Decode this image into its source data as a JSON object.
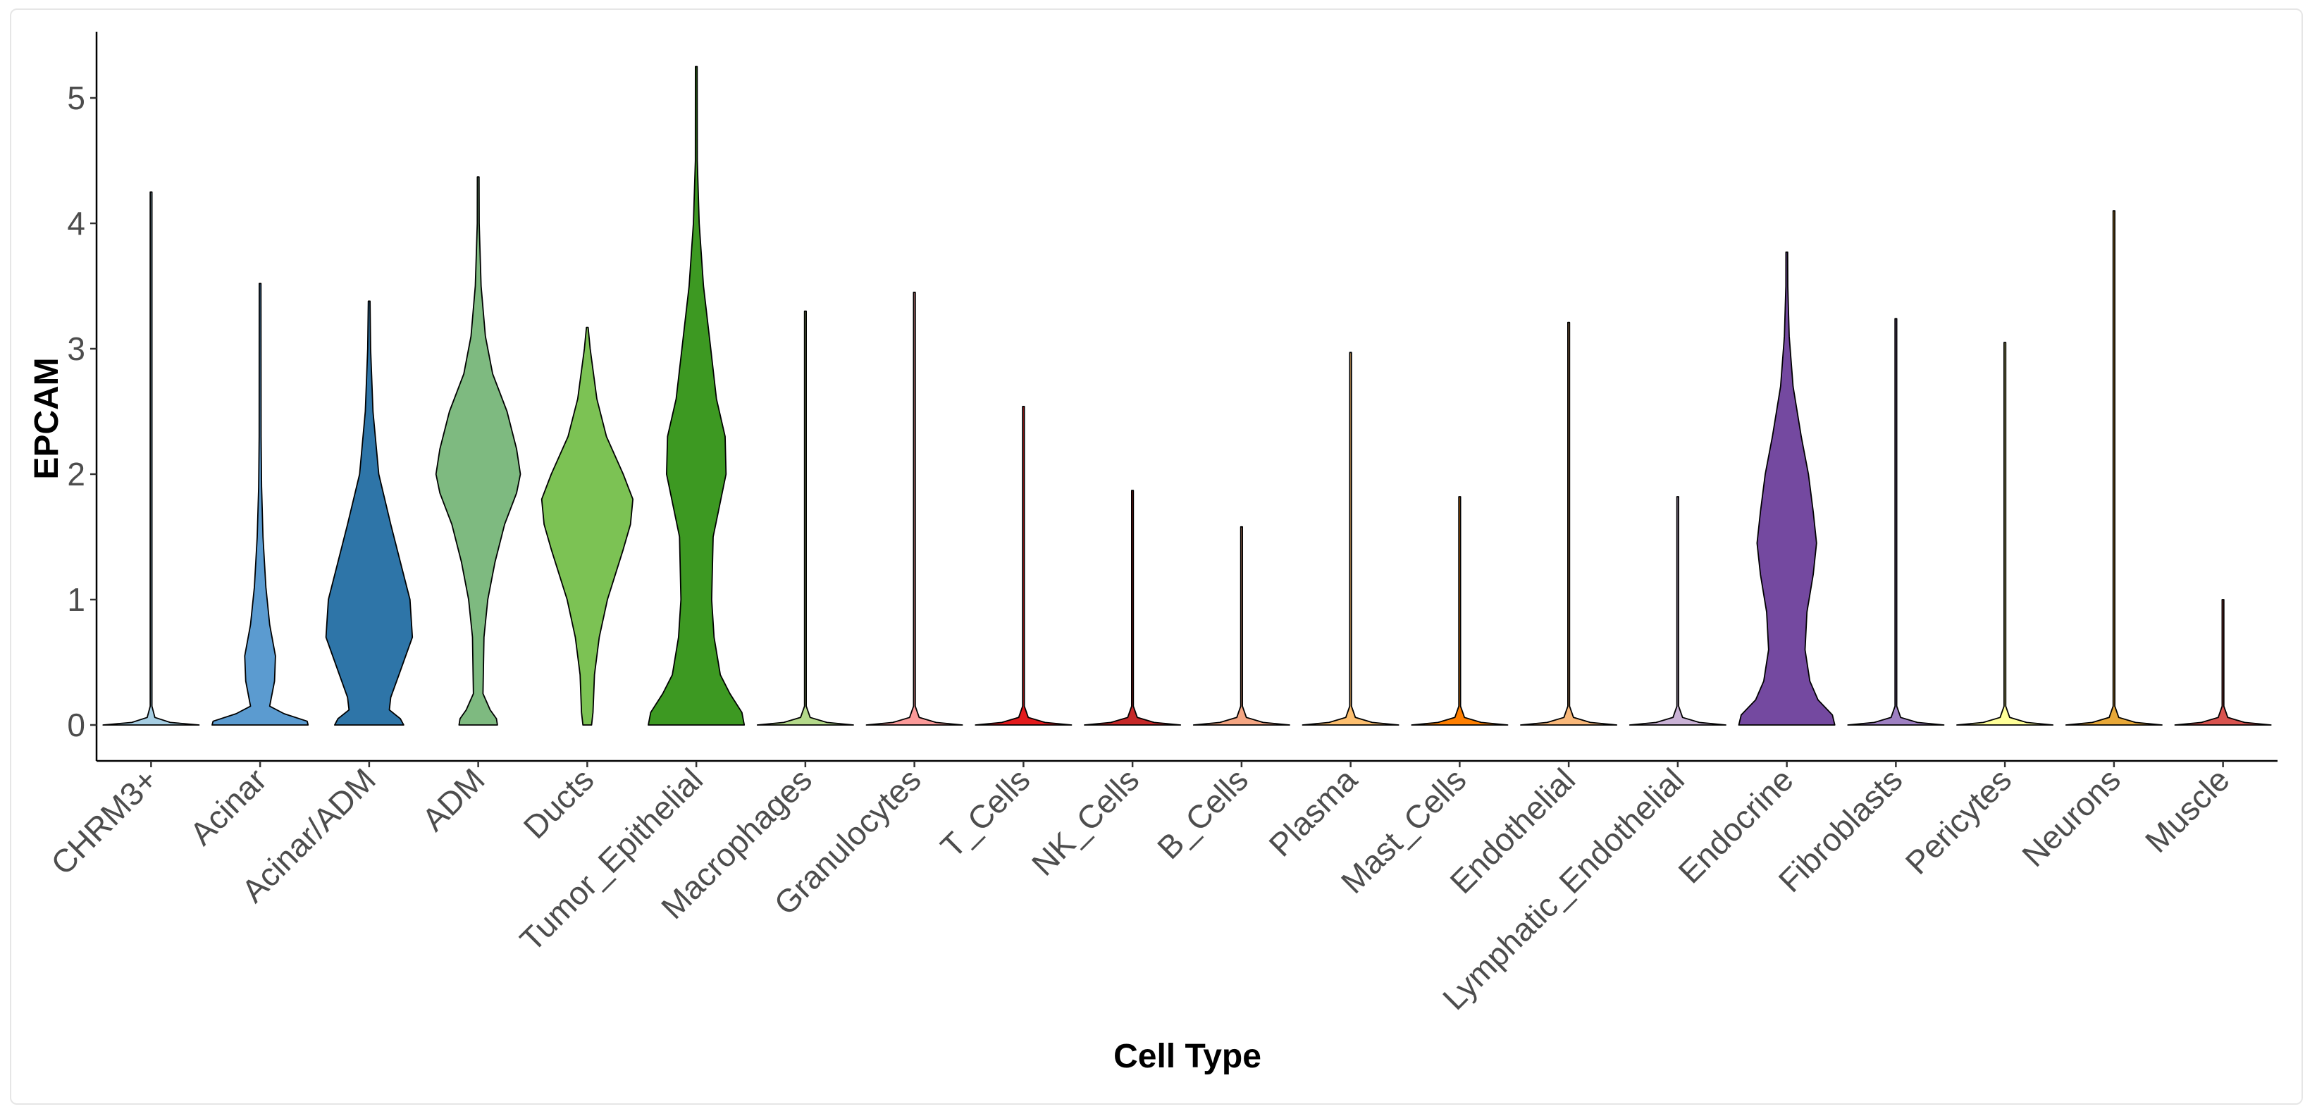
{
  "chart_data": {
    "type": "violin",
    "title": "",
    "xlabel": "Cell Type",
    "ylabel": "EPCAM",
    "ylim": [
      -0.3,
      5.5
    ],
    "yticks": [
      0,
      1,
      2,
      3,
      4,
      5
    ],
    "grid": false,
    "legend": "none",
    "categories": [
      "CHRM3+",
      "Acinar",
      "Acinar/ADM",
      "ADM",
      "Ducts",
      "Tumor_Epithelial",
      "Macrophages",
      "Granulocytes",
      "T_Cells",
      "NK_Cells",
      "B_Cells",
      "Plasma",
      "Mast_Cells",
      "Endothelial",
      "Lymphatic_Endothelial",
      "Endocrine",
      "Fibroblasts",
      "Pericytes",
      "Neurons",
      "Muscle"
    ],
    "series": [
      {
        "category": "CHRM3+",
        "color": "#a6cee3",
        "max": 4.25,
        "profile": [
          [
            0,
            1
          ],
          [
            0.02,
            0.4
          ],
          [
            0.06,
            0.08
          ],
          [
            0.15,
            0.01
          ],
          [
            4.25,
            0.01
          ]
        ]
      },
      {
        "category": "Acinar",
        "color": "#5b9bd0",
        "max": 3.52,
        "profile": [
          [
            0,
            1
          ],
          [
            0.03,
            0.98
          ],
          [
            0.09,
            0.5
          ],
          [
            0.15,
            0.2
          ],
          [
            0.35,
            0.3
          ],
          [
            0.55,
            0.32
          ],
          [
            0.8,
            0.2
          ],
          [
            1.1,
            0.12
          ],
          [
            1.5,
            0.06
          ],
          [
            1.9,
            0.03
          ],
          [
            2.3,
            0.02
          ],
          [
            3.52,
            0.01
          ]
        ]
      },
      {
        "category": "Acinar/ADM",
        "color": "#2e75a8",
        "max": 3.38,
        "profile": [
          [
            0,
            0.72
          ],
          [
            0.05,
            0.65
          ],
          [
            0.12,
            0.42
          ],
          [
            0.22,
            0.45
          ],
          [
            0.4,
            0.62
          ],
          [
            0.7,
            0.9
          ],
          [
            1.0,
            0.85
          ],
          [
            1.3,
            0.65
          ],
          [
            1.6,
            0.45
          ],
          [
            2.0,
            0.2
          ],
          [
            2.5,
            0.08
          ],
          [
            3.0,
            0.03
          ],
          [
            3.38,
            0.01
          ]
        ]
      },
      {
        "category": "ADM",
        "color": "#7eba80",
        "max": 4.37,
        "profile": [
          [
            0,
            0.4
          ],
          [
            0.05,
            0.38
          ],
          [
            0.12,
            0.25
          ],
          [
            0.25,
            0.1
          ],
          [
            0.7,
            0.12
          ],
          [
            1.0,
            0.2
          ],
          [
            1.3,
            0.35
          ],
          [
            1.6,
            0.55
          ],
          [
            1.85,
            0.8
          ],
          [
            2.0,
            0.88
          ],
          [
            2.2,
            0.8
          ],
          [
            2.5,
            0.6
          ],
          [
            2.8,
            0.3
          ],
          [
            3.1,
            0.15
          ],
          [
            3.5,
            0.06
          ],
          [
            4.0,
            0.02
          ],
          [
            4.37,
            0.01
          ]
        ]
      },
      {
        "category": "Ducts",
        "color": "#7cc254",
        "max": 3.17,
        "profile": [
          [
            0,
            0.09
          ],
          [
            0.1,
            0.12
          ],
          [
            0.4,
            0.15
          ],
          [
            0.7,
            0.25
          ],
          [
            1.0,
            0.42
          ],
          [
            1.4,
            0.75
          ],
          [
            1.6,
            0.9
          ],
          [
            1.8,
            0.95
          ],
          [
            2.0,
            0.75
          ],
          [
            2.3,
            0.4
          ],
          [
            2.6,
            0.2
          ],
          [
            3.0,
            0.06
          ],
          [
            3.17,
            0.01
          ]
        ]
      },
      {
        "category": "Tumor_Epithelial",
        "color": "#3d9922",
        "max": 5.25,
        "profile": [
          [
            0,
            1
          ],
          [
            0.1,
            0.95
          ],
          [
            0.25,
            0.7
          ],
          [
            0.4,
            0.5
          ],
          [
            0.7,
            0.37
          ],
          [
            1.0,
            0.32
          ],
          [
            1.5,
            0.35
          ],
          [
            2.0,
            0.62
          ],
          [
            2.3,
            0.6
          ],
          [
            2.6,
            0.42
          ],
          [
            3.0,
            0.3
          ],
          [
            3.5,
            0.15
          ],
          [
            4.0,
            0.06
          ],
          [
            4.5,
            0.02
          ],
          [
            5.25,
            0.01
          ]
        ]
      },
      {
        "category": "Macrophages",
        "color": "#b4d98a",
        "max": 3.3,
        "profile": [
          [
            0,
            1
          ],
          [
            0.02,
            0.45
          ],
          [
            0.06,
            0.1
          ],
          [
            0.15,
            0.01
          ],
          [
            3.3,
            0.01
          ]
        ]
      },
      {
        "category": "Granulocytes",
        "color": "#fb9a99",
        "max": 3.45,
        "profile": [
          [
            0,
            1
          ],
          [
            0.02,
            0.45
          ],
          [
            0.06,
            0.1
          ],
          [
            0.15,
            0.01
          ],
          [
            3.45,
            0.01
          ]
        ]
      },
      {
        "category": "T_Cells",
        "color": "#e31a1c",
        "max": 2.54,
        "profile": [
          [
            0,
            1
          ],
          [
            0.02,
            0.45
          ],
          [
            0.06,
            0.1
          ],
          [
            0.15,
            0.01
          ],
          [
            2.54,
            0.01
          ]
        ]
      },
      {
        "category": "NK_Cells",
        "color": "#c62828",
        "max": 1.87,
        "profile": [
          [
            0,
            1
          ],
          [
            0.02,
            0.45
          ],
          [
            0.06,
            0.1
          ],
          [
            0.15,
            0.01
          ],
          [
            1.87,
            0.01
          ]
        ]
      },
      {
        "category": "B_Cells",
        "color": "#f4a582",
        "max": 1.58,
        "profile": [
          [
            0,
            1
          ],
          [
            0.02,
            0.45
          ],
          [
            0.06,
            0.1
          ],
          [
            0.15,
            0.01
          ],
          [
            1.58,
            0.01
          ]
        ]
      },
      {
        "category": "Plasma",
        "color": "#fdbf6f",
        "max": 2.97,
        "profile": [
          [
            0,
            1
          ],
          [
            0.02,
            0.45
          ],
          [
            0.06,
            0.1
          ],
          [
            0.15,
            0.01
          ],
          [
            2.97,
            0.01
          ]
        ]
      },
      {
        "category": "Mast_Cells",
        "color": "#ff7f00",
        "max": 1.82,
        "profile": [
          [
            0,
            1
          ],
          [
            0.02,
            0.45
          ],
          [
            0.06,
            0.1
          ],
          [
            0.15,
            0.01
          ],
          [
            1.82,
            0.01
          ]
        ]
      },
      {
        "category": "Endothelial",
        "color": "#f9b87a",
        "max": 3.21,
        "profile": [
          [
            0,
            1
          ],
          [
            0.02,
            0.45
          ],
          [
            0.06,
            0.1
          ],
          [
            0.15,
            0.01
          ],
          [
            3.21,
            0.01
          ]
        ]
      },
      {
        "category": "Lymphatic_Endothelial",
        "color": "#cab2d6",
        "max": 1.82,
        "profile": [
          [
            0,
            1
          ],
          [
            0.02,
            0.45
          ],
          [
            0.06,
            0.1
          ],
          [
            0.15,
            0.01
          ],
          [
            1.82,
            0.01
          ]
        ]
      },
      {
        "category": "Endocrine",
        "color": "#7449a0",
        "max": 3.77,
        "profile": [
          [
            0,
            1
          ],
          [
            0.08,
            0.95
          ],
          [
            0.2,
            0.65
          ],
          [
            0.35,
            0.48
          ],
          [
            0.6,
            0.38
          ],
          [
            0.9,
            0.42
          ],
          [
            1.2,
            0.55
          ],
          [
            1.45,
            0.62
          ],
          [
            1.7,
            0.55
          ],
          [
            2.0,
            0.45
          ],
          [
            2.3,
            0.3
          ],
          [
            2.7,
            0.13
          ],
          [
            3.1,
            0.05
          ],
          [
            3.5,
            0.02
          ],
          [
            3.77,
            0.01
          ]
        ]
      },
      {
        "category": "Fibroblasts",
        "color": "#9e80c2",
        "max": 3.24,
        "profile": [
          [
            0,
            1
          ],
          [
            0.02,
            0.45
          ],
          [
            0.06,
            0.1
          ],
          [
            0.15,
            0.01
          ],
          [
            3.24,
            0.01
          ]
        ]
      },
      {
        "category": "Pericytes",
        "color": "#ffff99",
        "max": 3.05,
        "profile": [
          [
            0,
            1
          ],
          [
            0.02,
            0.45
          ],
          [
            0.06,
            0.1
          ],
          [
            0.15,
            0.01
          ],
          [
            3.05,
            0.01
          ]
        ]
      },
      {
        "category": "Neurons",
        "color": "#e8a838",
        "max": 4.1,
        "profile": [
          [
            0,
            1
          ],
          [
            0.02,
            0.45
          ],
          [
            0.06,
            0.1
          ],
          [
            0.15,
            0.01
          ],
          [
            4.1,
            0.01
          ]
        ]
      },
      {
        "category": "Muscle",
        "color": "#d9534f",
        "max": 1.0,
        "profile": [
          [
            0,
            1
          ],
          [
            0.02,
            0.45
          ],
          [
            0.06,
            0.1
          ],
          [
            0.15,
            0.01
          ],
          [
            1.0,
            0.0
          ]
        ]
      }
    ]
  }
}
